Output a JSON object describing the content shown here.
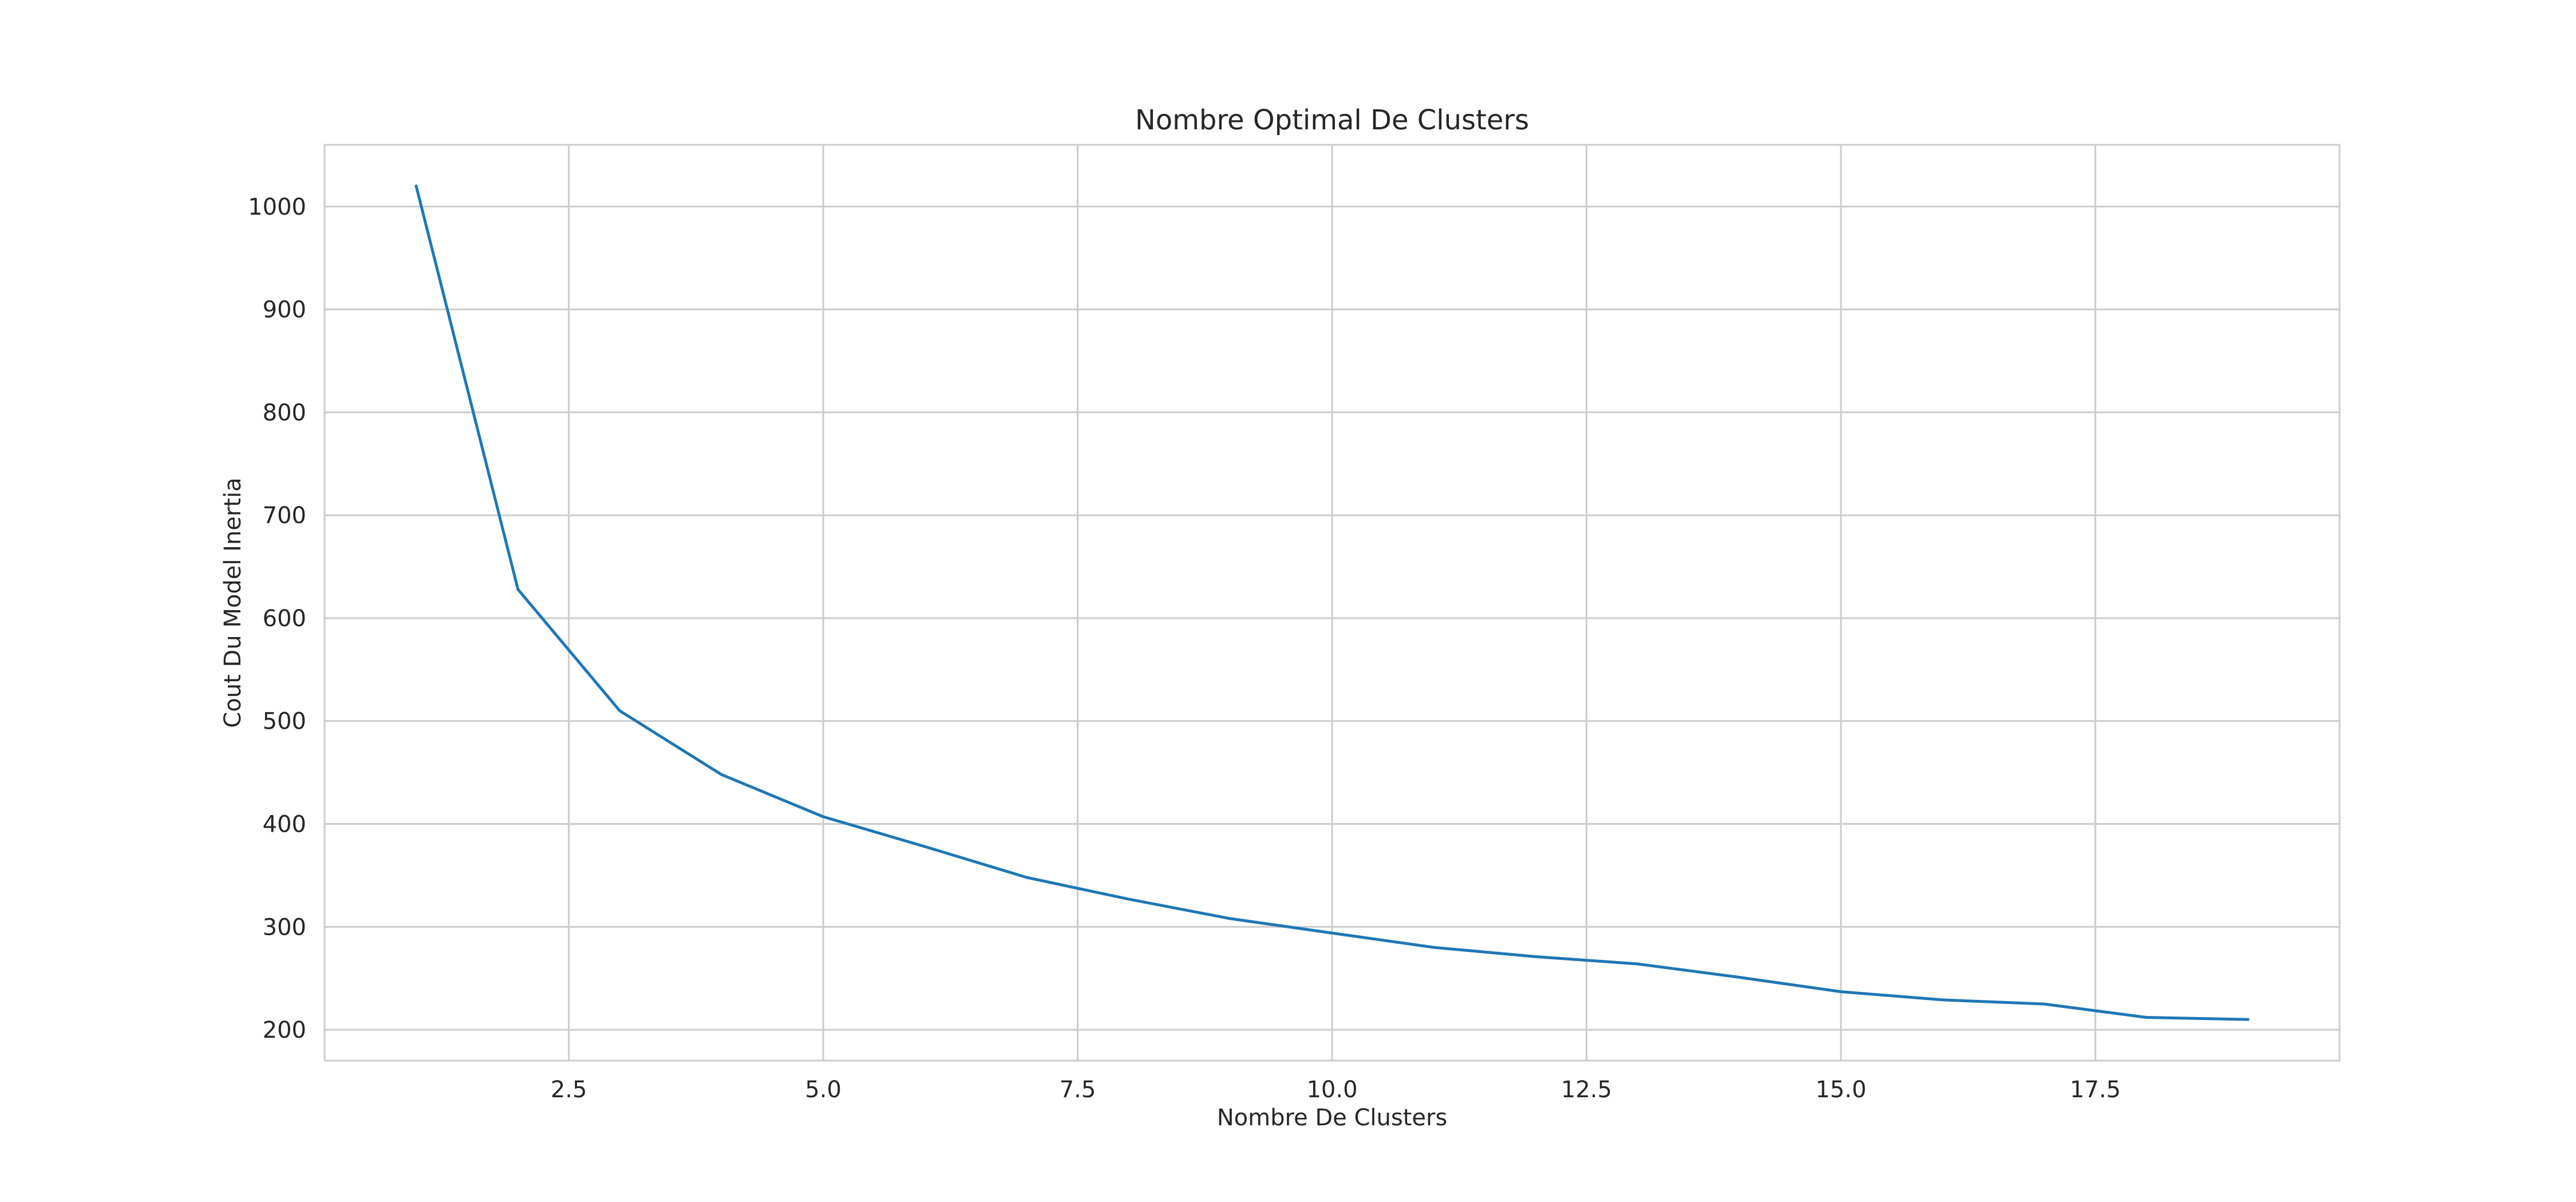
{
  "chart_data": {
    "type": "line",
    "title": "Nombre Optimal De Clusters",
    "xlabel": "Nombre De Clusters",
    "ylabel": "Cout Du Model Inertia",
    "xlim": [
      0.1,
      19.9
    ],
    "ylim": [
      170,
      1060
    ],
    "x_ticks": [
      2.5,
      5.0,
      7.5,
      10.0,
      12.5,
      15.0,
      17.5
    ],
    "x_tick_labels": [
      "2.5",
      "5.0",
      "7.5",
      "10.0",
      "12.5",
      "15.0",
      "17.5"
    ],
    "y_ticks": [
      200,
      300,
      400,
      500,
      600,
      700,
      800,
      900,
      1000
    ],
    "y_tick_labels": [
      "200",
      "300",
      "400",
      "500",
      "600",
      "700",
      "800",
      "900",
      "1000"
    ],
    "grid": true,
    "legend": "none",
    "series": [
      {
        "color": "#1f77b4",
        "x": [
          1,
          2,
          3,
          4,
          5,
          6,
          7,
          8,
          9,
          10,
          11,
          12,
          13,
          14,
          15,
          16,
          17,
          18,
          19
        ],
        "y": [
          1020,
          628,
          510,
          448,
          407,
          378,
          348,
          327,
          308,
          294,
          280,
          271,
          264,
          251,
          237,
          229,
          225,
          212,
          210
        ]
      }
    ]
  }
}
